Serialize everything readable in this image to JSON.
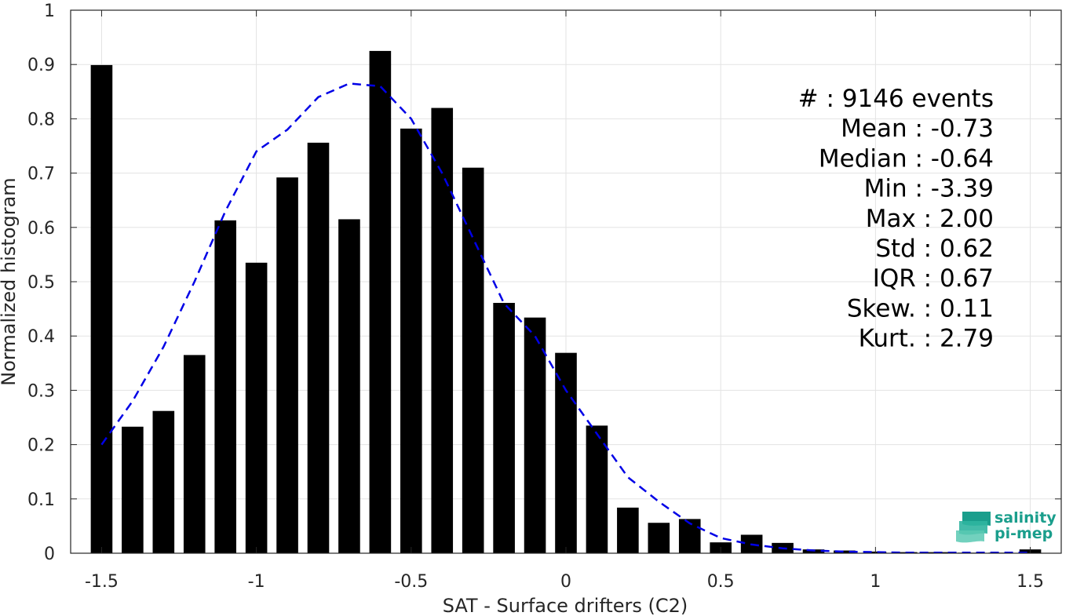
{
  "chart_data": {
    "type": "bar",
    "xlabel": "SAT - Surface drifters (C2)",
    "ylabel": "Normalized histogram",
    "xlim": [
      -1.6,
      1.6
    ],
    "ylim": [
      0,
      1
    ],
    "xticks": [
      "-1.5",
      "-1",
      "-0.5",
      "0",
      "0.5",
      "1",
      "1.5"
    ],
    "xtick_values": [
      -1.5,
      -1,
      -0.5,
      0,
      0.5,
      1,
      1.5
    ],
    "yticks": [
      "0",
      "0.1",
      "0.2",
      "0.3",
      "0.4",
      "0.5",
      "0.6",
      "0.7",
      "0.8",
      "0.9",
      "1"
    ],
    "ytick_values": [
      0,
      0.1,
      0.2,
      0.3,
      0.4,
      0.5,
      0.6,
      0.7,
      0.8,
      0.9,
      1
    ],
    "grid": true,
    "bar_color": "#000000",
    "bar_width": 0.07,
    "bars": {
      "x": [
        -1.5,
        -1.4,
        -1.3,
        -1.2,
        -1.1,
        -1.0,
        -0.9,
        -0.8,
        -0.7,
        -0.6,
        -0.5,
        -0.4,
        -0.3,
        -0.2,
        -0.1,
        0.0,
        0.1,
        0.2,
        0.3,
        0.4,
        0.5,
        0.6,
        0.7,
        0.8,
        0.9,
        1.0,
        1.1,
        1.2,
        1.3,
        1.4,
        1.5
      ],
      "values": [
        0.899,
        0.233,
        0.262,
        0.365,
        0.613,
        0.535,
        0.692,
        0.756,
        0.615,
        0.925,
        0.782,
        0.82,
        0.71,
        0.461,
        0.434,
        0.369,
        0.235,
        0.084,
        0.056,
        0.063,
        0.02,
        0.034,
        0.019,
        0.007,
        0.005,
        0.003,
        0.002,
        0.002,
        0.001,
        0.001,
        0.007
      ]
    },
    "fit_curve": {
      "style": "dashed",
      "color": "#0000e6",
      "x": [
        -1.5,
        -1.4,
        -1.3,
        -1.2,
        -1.1,
        -1.0,
        -0.9,
        -0.8,
        -0.7,
        -0.6,
        -0.5,
        -0.4,
        -0.3,
        -0.2,
        -0.1,
        0.0,
        0.1,
        0.2,
        0.3,
        0.4,
        0.5,
        0.6,
        0.7,
        0.8,
        0.9,
        1.0,
        1.1,
        1.2,
        1.3,
        1.4,
        1.5
      ],
      "y": [
        0.2,
        0.28,
        0.38,
        0.5,
        0.63,
        0.74,
        0.78,
        0.84,
        0.865,
        0.86,
        0.8,
        0.7,
        0.58,
        0.46,
        0.4,
        0.3,
        0.22,
        0.14,
        0.095,
        0.055,
        0.028,
        0.016,
        0.009,
        0.005,
        0.003,
        0.002,
        0.001,
        0.001,
        0.001,
        0.001,
        0.001
      ]
    },
    "stats": [
      "#  : 9146 events",
      "Mean : -0.73",
      "Median : -0.64",
      "Min : -3.39",
      "Max : 2.00",
      "Std : 0.62",
      "IQR : 0.67",
      "Skew. : 0.11",
      "Kurt. : 2.79"
    ]
  },
  "logo": {
    "line1": "salinity",
    "line2": "pi-mep",
    "color": "#1a9e8c"
  }
}
